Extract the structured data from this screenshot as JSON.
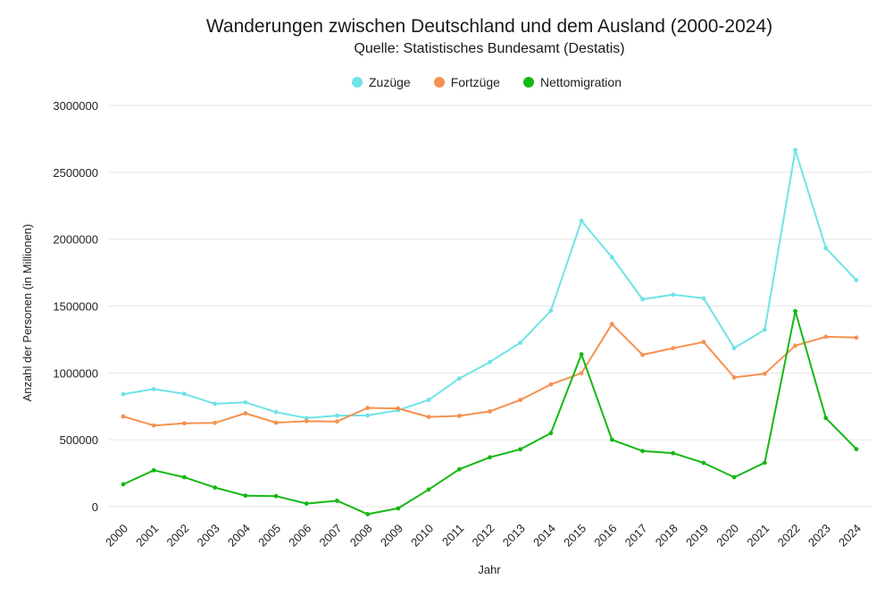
{
  "chart_data": {
    "type": "line",
    "title": "Wanderungen zwischen Deutschland und dem Ausland (2000-2024)",
    "subtitle": "Quelle: Statistisches Bundesamt (Destatis)",
    "xlabel": "Jahr",
    "ylabel": "Anzahl der Personen (in Millionen)",
    "ylim": [
      -60000,
      3000000
    ],
    "yticks": [
      "0",
      "500000",
      "1000000",
      "1500000",
      "2000000",
      "2500000",
      "3000000"
    ],
    "grid": true,
    "legend_position": "top-center",
    "x": [
      "2000",
      "2001",
      "2002",
      "2003",
      "2004",
      "2005",
      "2006",
      "2007",
      "2008",
      "2009",
      "2010",
      "2011",
      "2012",
      "2013",
      "2014",
      "2015",
      "2016",
      "2017",
      "2018",
      "2019",
      "2020",
      "2021",
      "2022",
      "2023",
      "2024"
    ],
    "series": [
      {
        "name": "Zuzüge",
        "color": "#6fe3e6",
        "values": [
          841000,
          879000,
          843000,
          769000,
          780000,
          707000,
          662000,
          681000,
          682000,
          721000,
          798000,
          958000,
          1081000,
          1226000,
          1465000,
          2137000,
          1865000,
          1551000,
          1585000,
          1558000,
          1186000,
          1323000,
          2666000,
          1933000,
          1694000
        ]
      },
      {
        "name": "Fortzüge",
        "color": "#f5914f",
        "values": [
          674000,
          607000,
          623000,
          626000,
          698000,
          628000,
          639000,
          637000,
          738000,
          734000,
          671000,
          679000,
          712000,
          798000,
          914000,
          998000,
          1365000,
          1135000,
          1185000,
          1231000,
          966000,
          994000,
          1204000,
          1270000,
          1264000
        ]
      },
      {
        "name": "Nettomigration",
        "color": "#14b814",
        "values": [
          167000,
          272000,
          220000,
          143000,
          82000,
          79000,
          23000,
          44000,
          -56000,
          -13000,
          128000,
          279000,
          369000,
          429000,
          550000,
          1139000,
          500000,
          416000,
          400000,
          327000,
          220000,
          329000,
          1462000,
          663000,
          430000
        ]
      }
    ]
  }
}
